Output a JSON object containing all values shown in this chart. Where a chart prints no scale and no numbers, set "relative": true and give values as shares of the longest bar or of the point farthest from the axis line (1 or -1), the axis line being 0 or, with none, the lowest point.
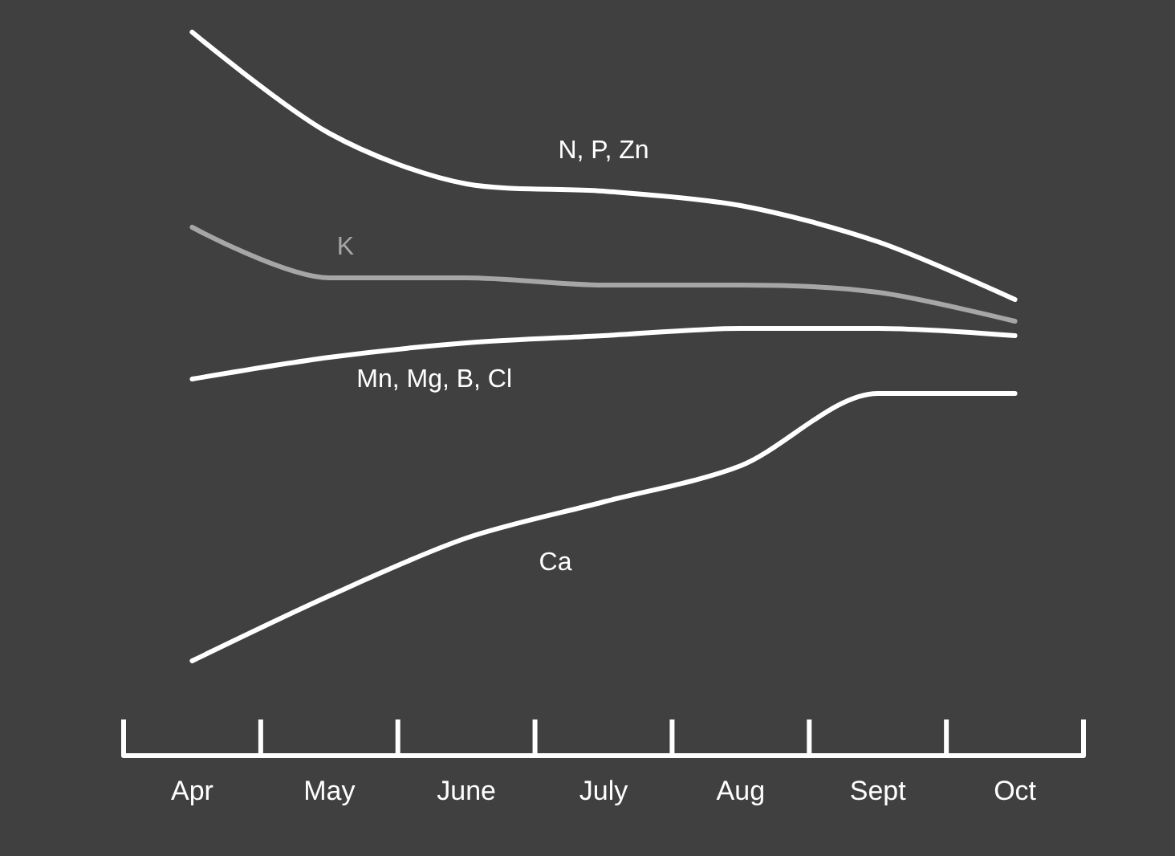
{
  "chart_data": {
    "type": "line",
    "relative": true,
    "categories": [
      "Apr",
      "May",
      "June",
      "July",
      "Aug",
      "Sept",
      "Oct"
    ],
    "series": [
      {
        "name": "N, P, Zn",
        "color": "#ffffff",
        "values": [
          1,
          0.86,
          0.79,
          0.78,
          0.76,
          0.71,
          0.63
        ]
      },
      {
        "name": "K",
        "color": "#a6a6a6",
        "values": [
          0.73,
          0.66,
          0.66,
          0.65,
          0.65,
          0.64,
          0.6
        ]
      },
      {
        "name": "Mn, Mg, B, Cl",
        "color": "#ffffff",
        "values": [
          0.52,
          0.55,
          0.57,
          0.58,
          0.59,
          0.59,
          0.58
        ]
      },
      {
        "name": "Ca",
        "color": "#ffffff",
        "values": [
          0.13,
          0.22,
          0.3,
          0.35,
          0.4,
          0.5,
          0.5
        ]
      }
    ],
    "grid": false,
    "legend": false
  }
}
